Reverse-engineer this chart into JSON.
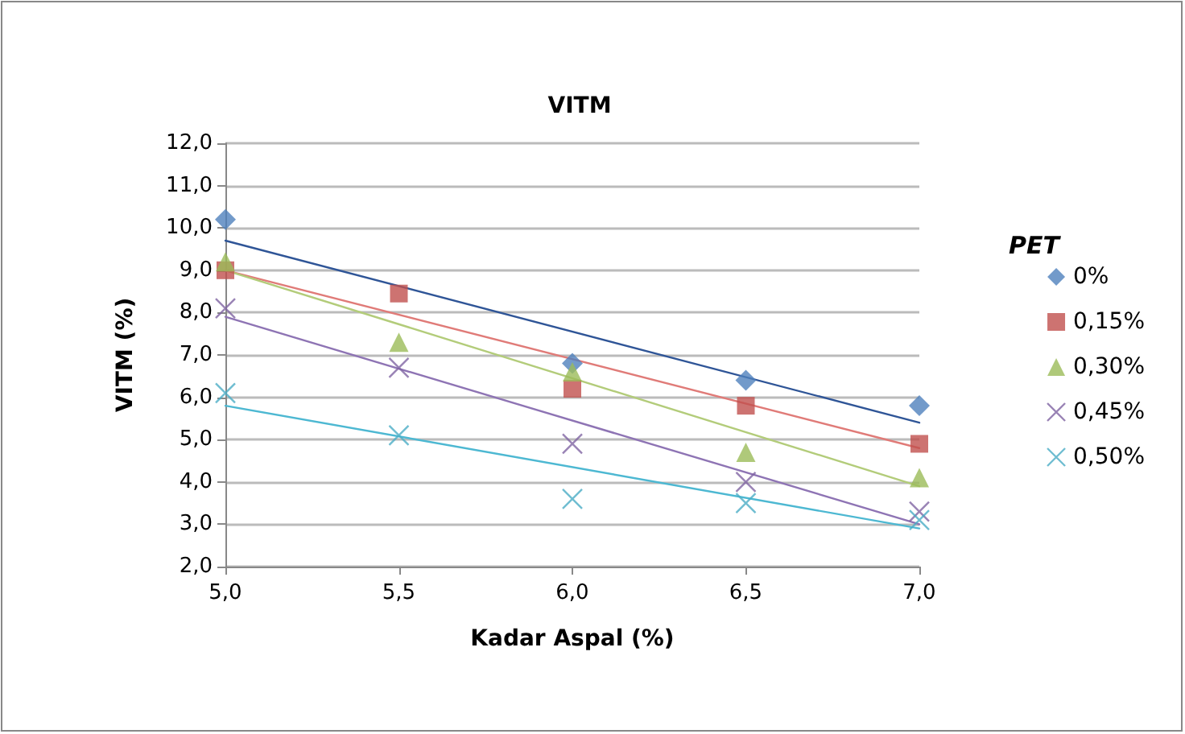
{
  "chart_data": {
    "type": "scatter",
    "title": "VITM",
    "xlabel": "Kadar Aspal (%)",
    "ylabel": "VITM (%)",
    "legend_title": "PET",
    "x": [
      5,
      5.5,
      6,
      6.5,
      7
    ],
    "series": [
      {
        "name": "0%",
        "color": "#4f81bd",
        "marker": "diamond",
        "values": [
          10.2,
          null,
          6.8,
          6.4,
          5.8
        ]
      },
      {
        "name": "0,15%",
        "color": "#c0504d",
        "marker": "square",
        "values": [
          9.0,
          8.45,
          6.2,
          5.8,
          4.9
        ]
      },
      {
        "name": "0,30%",
        "color": "#9bbb59",
        "marker": "triangle",
        "values": [
          9.2,
          7.3,
          6.6,
          4.7,
          4.1
        ]
      },
      {
        "name": "0,45%",
        "color": "#8064a2",
        "marker": "cross",
        "values": [
          8.1,
          6.7,
          4.9,
          4.0,
          3.3
        ]
      },
      {
        "name": "0,50%",
        "color": "#4bacc6",
        "marker": "cross",
        "values": [
          6.1,
          5.1,
          3.6,
          3.5,
          3.1
        ]
      },
      {
        "type": "line",
        "color": "#2f5597",
        "marker": "none",
        "values": [
          9.7,
          null,
          null,
          null,
          5.4
        ]
      },
      {
        "type": "line",
        "color": "#e07b78",
        "marker": "none",
        "values": [
          9.0,
          null,
          null,
          null,
          4.8
        ]
      },
      {
        "type": "line",
        "color": "#b3cc7a",
        "marker": "none",
        "values": [
          9.0,
          null,
          null,
          null,
          3.9
        ]
      },
      {
        "type": "line",
        "color": "#8e74b4",
        "marker": "none",
        "values": [
          7.9,
          null,
          null,
          null,
          3.0
        ]
      },
      {
        "type": "line",
        "color": "#4db8d2",
        "marker": "none",
        "values": [
          5.8,
          null,
          null,
          null,
          2.9
        ]
      }
    ],
    "xlim": [
      5,
      7
    ],
    "xticks": [
      {
        "value": 5,
        "label": "5,0"
      },
      {
        "value": 5.5,
        "label": "5,5"
      },
      {
        "value": 6,
        "label": "6,0"
      },
      {
        "value": 6.5,
        "label": "6,5"
      },
      {
        "value": 7,
        "label": "7,0"
      }
    ],
    "ylim": [
      2,
      12
    ],
    "yticks": [
      {
        "value": 2,
        "label": "2,0"
      },
      {
        "value": 3,
        "label": "3,0"
      },
      {
        "value": 4,
        "label": "4,0"
      },
      {
        "value": 5,
        "label": "5,0"
      },
      {
        "value": 6,
        "label": "6,0"
      },
      {
        "value": 7,
        "label": "7,0"
      },
      {
        "value": 8,
        "label": "8,0"
      },
      {
        "value": 9,
        "label": "9,0"
      },
      {
        "value": 10,
        "label": "10,0"
      },
      {
        "value": 11,
        "label": "11,0"
      },
      {
        "value": 12,
        "label": "12,0"
      }
    ],
    "grid": "y",
    "legend": "right"
  }
}
